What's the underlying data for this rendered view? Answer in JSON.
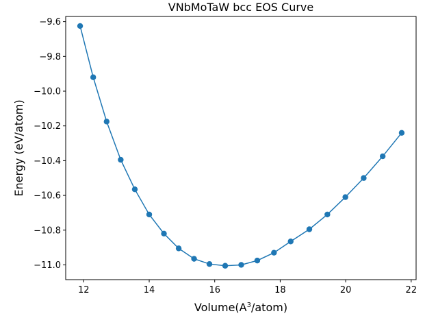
{
  "chart_data": {
    "type": "line",
    "title": "VNbMoTaW bcc EOS Curve",
    "xlabel": "Volume(A³/atom)",
    "xlabel_main": "Volume(A",
    "xlabel_sup": "3",
    "xlabel_tail": "/atom)",
    "ylabel": "Energy (eV/atom)",
    "xlim": [
      11.45,
      22.15
    ],
    "ylim": [
      -11.085,
      -9.57
    ],
    "xticks": [
      12,
      14,
      16,
      18,
      20,
      22
    ],
    "xtick_labels": [
      "12",
      "14",
      "16",
      "18",
      "20",
      "22"
    ],
    "yticks": [
      -11.0,
      -10.8,
      -10.6,
      -10.4,
      -10.2,
      -10.0,
      -9.8,
      -9.6
    ],
    "ytick_labels": [
      "−11.0",
      "−10.8",
      "−10.6",
      "−10.4",
      "−10.2",
      "−10.0",
      "−9.8",
      "−9.6"
    ],
    "grid": false,
    "series": [
      {
        "color": "#1f77b4",
        "marker": "circle",
        "x": [
          11.89,
          12.29,
          12.7,
          13.13,
          13.56,
          14.0,
          14.45,
          14.9,
          15.37,
          15.84,
          16.32,
          16.81,
          17.3,
          17.81,
          18.32,
          18.89,
          19.44,
          19.99,
          20.55,
          21.13,
          21.71
        ],
        "y": [
          -9.625,
          -9.92,
          -10.175,
          -10.395,
          -10.565,
          -10.71,
          -10.82,
          -10.905,
          -10.965,
          -10.995,
          -11.005,
          -11.0,
          -10.975,
          -10.93,
          -10.865,
          -10.795,
          -10.71,
          -10.61,
          -10.5,
          -10.375,
          -10.24
        ]
      }
    ]
  }
}
